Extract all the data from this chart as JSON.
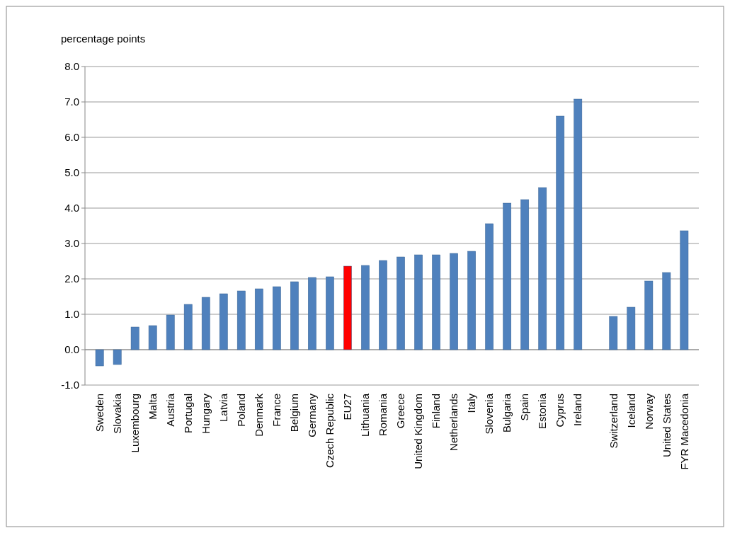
{
  "chart_data": {
    "type": "bar",
    "ylabel": "percentage points",
    "categories": [
      "Sweden",
      "Slovakia",
      "Luxembourg",
      "Malta",
      "Austria",
      "Portugal",
      "Hungary",
      "Latvia",
      "Poland",
      "Denmark",
      "France",
      "Belgium",
      "Germany",
      "Czech Republic",
      "EU27",
      "Lithuania",
      "Romania",
      "Greece",
      "United Kingdom",
      "Finland",
      "Netherlands",
      "Italy",
      "Slovenia",
      "Bulgaria",
      "Spain",
      "Estonia",
      "Cyprus",
      "Ireland",
      null,
      "Switzerland",
      "Iceland",
      "Norway",
      "United States",
      "FYR Macedonia"
    ],
    "values": [
      -0.46,
      -0.42,
      0.64,
      0.68,
      0.98,
      1.28,
      1.48,
      1.58,
      1.66,
      1.72,
      1.78,
      1.92,
      2.04,
      2.06,
      2.36,
      2.38,
      2.52,
      2.62,
      2.68,
      2.68,
      2.72,
      2.78,
      3.56,
      4.14,
      4.24,
      4.58,
      6.6,
      7.08,
      null,
      0.94,
      1.2,
      1.94,
      2.18,
      3.36
    ],
    "colors": [
      "#4f81bd",
      "#4f81bd",
      "#4f81bd",
      "#4f81bd",
      "#4f81bd",
      "#4f81bd",
      "#4f81bd",
      "#4f81bd",
      "#4f81bd",
      "#4f81bd",
      "#4f81bd",
      "#4f81bd",
      "#4f81bd",
      "#4f81bd",
      "#ff0000",
      "#4f81bd",
      "#4f81bd",
      "#4f81bd",
      "#4f81bd",
      "#4f81bd",
      "#4f81bd",
      "#4f81bd",
      "#4f81bd",
      "#4f81bd",
      "#4f81bd",
      "#4f81bd",
      "#4f81bd",
      "#4f81bd",
      null,
      "#4f81bd",
      "#4f81bd",
      "#4f81bd",
      "#4f81bd",
      "#4f81bd"
    ],
    "ylim": [
      -1,
      8
    ],
    "yticks": [
      {
        "value": -1,
        "label": "-1.0"
      },
      {
        "value": 0,
        "label": "0.0"
      },
      {
        "value": 1,
        "label": "1.0"
      },
      {
        "value": 2,
        "label": "2.0"
      },
      {
        "value": 3,
        "label": "3.0"
      },
      {
        "value": 4,
        "label": "4.0"
      },
      {
        "value": 5,
        "label": "5.0"
      },
      {
        "value": 6,
        "label": "6.0"
      },
      {
        "value": 7,
        "label": "7.0"
      },
      {
        "value": 8,
        "label": "8.0"
      }
    ],
    "grid": "y"
  }
}
